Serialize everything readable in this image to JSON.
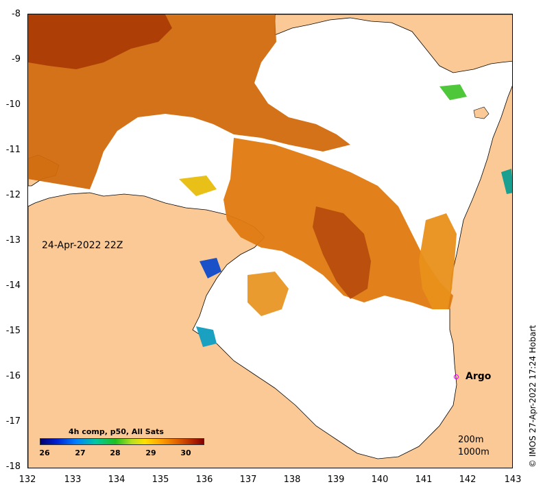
{
  "map": {
    "date_label": "24-Apr-2022 22Z",
    "argo_label": "Argo",
    "depth_contours": [
      "200m",
      "1000m"
    ],
    "colorbar_title": "4h comp, p50, All Sats",
    "colorbar_ticks": [
      "26",
      "27",
      "28",
      "29",
      "30"
    ],
    "copyright": "© IMOS 27-Apr-2022 17:24 Hobart",
    "longitude_ticks": [
      "132",
      "133",
      "134",
      "135",
      "136",
      "137",
      "138",
      "139",
      "140",
      "141",
      "142",
      "143"
    ],
    "latitude_ticks": [
      "-8",
      "-9",
      "-10",
      "-11",
      "-12",
      "-13",
      "-14",
      "-15",
      "-16",
      "-17",
      "-18"
    ],
    "colors": {
      "land": "#fbc995",
      "no_data": "#ffffff",
      "warm_sst": "#e07a10",
      "hot_sst": "#a83a04",
      "argo_marker": "#e600e6"
    }
  }
}
